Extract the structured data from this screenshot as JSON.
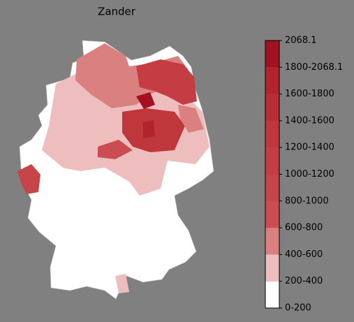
{
  "map": {
    "title": "Zander",
    "legend": {
      "labels": [
        "0-200",
        "200-400",
        "400-600",
        "600-800",
        "800-1000",
        "1000-1200",
        "1200-1400",
        "1400-1600",
        "1600-1800",
        "1800-2068.1",
        "2068.1"
      ],
      "colors": [
        "#ffffff",
        "#eebdbd",
        "#db8081",
        "#cb4d51",
        "#c74448",
        "#c33d42",
        "#bf363b",
        "#b92d34",
        "#b2232c",
        "#a31020"
      ]
    }
  }
}
